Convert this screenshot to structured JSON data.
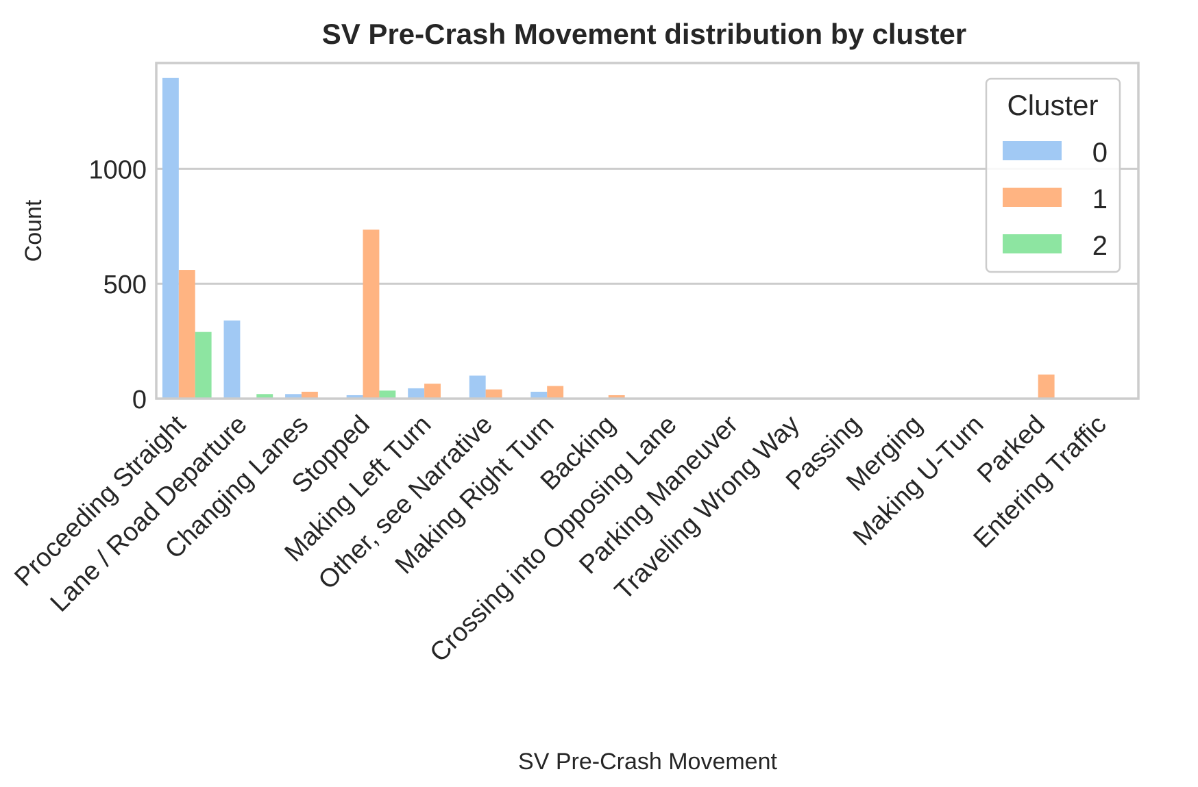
{
  "chart_data": {
    "type": "bar",
    "title": "SV Pre-Crash Movement distribution by cluster",
    "xlabel": "SV Pre-Crash Movement",
    "ylabel": "Count",
    "ylim": [
      0,
      1460
    ],
    "yticks": [
      "0",
      "500",
      "1000"
    ],
    "grid": "horizontal",
    "legend": {
      "title": "Cluster",
      "placement": "top-right"
    },
    "categories": [
      "Proceeding Straight",
      "Lane / Road Departure",
      "Changing Lanes",
      "Stopped",
      "Making Left Turn",
      "Other, see Narrative",
      "Making Right Turn",
      "Backing",
      "Crossing into Opposing Lane",
      "Parking Maneuver",
      "Traveling Wrong Way",
      "Passing",
      "Merging",
      "Making U-Turn",
      "Parked",
      "Entering Traffic"
    ],
    "series": [
      {
        "name": "0",
        "color": "#a1c9f4",
        "values": [
          1395,
          340,
          20,
          15,
          45,
          100,
          30,
          0,
          0,
          0,
          0,
          0,
          0,
          0,
          0,
          0
        ]
      },
      {
        "name": "1",
        "color": "#ffb482",
        "values": [
          560,
          0,
          30,
          735,
          65,
          40,
          55,
          15,
          0,
          0,
          0,
          0,
          0,
          0,
          105,
          0
        ]
      },
      {
        "name": "2",
        "color": "#8de5a1",
        "values": [
          290,
          20,
          0,
          35,
          0,
          0,
          0,
          0,
          0,
          0,
          0,
          0,
          0,
          0,
          0,
          0
        ]
      }
    ]
  }
}
